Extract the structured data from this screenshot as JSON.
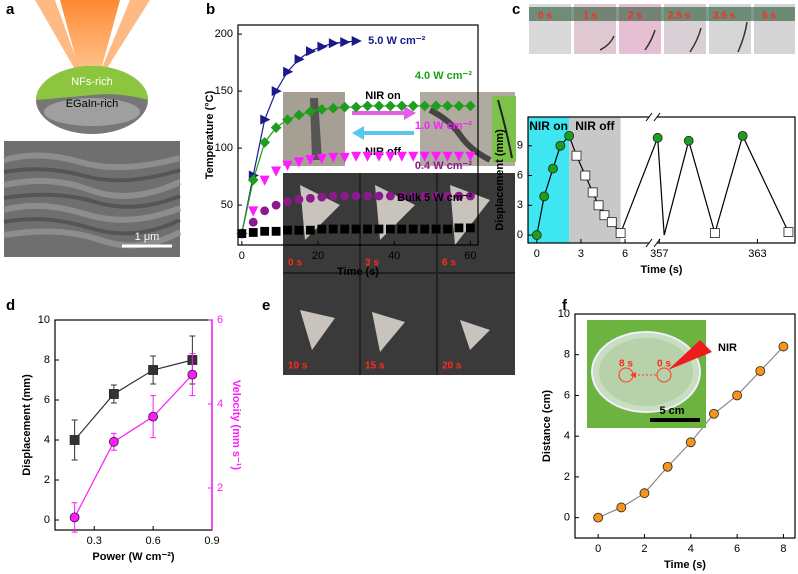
{
  "panel_labels": [
    "a",
    "b",
    "c",
    "d",
    "e",
    "f"
  ],
  "panel_a": {
    "top_layer": "NFs-rich",
    "bottom_layer": "EGaIn-rich",
    "scale_bar": "1 μm"
  },
  "panel_c_photos": [
    "0 s",
    "1 s",
    "2 s",
    "2.5 s",
    "3.5 s",
    "5 s"
  ],
  "panel_e": {
    "forward": "NIR on",
    "backward": "NIR off",
    "photos": [
      "0 s",
      "3 s",
      "6 s",
      "10 s",
      "15 s",
      "20 s"
    ]
  },
  "panel_f_inset": {
    "start": "8 s",
    "end": "0 s",
    "scale_bar": "5 cm",
    "source": "NIR"
  },
  "chart_data": [
    {
      "type": "scatter",
      "xlabel": "Time (s)",
      "ylabel": "Temperature (°C)",
      "x": [
        0,
        3,
        6,
        9,
        12,
        15,
        18,
        21,
        24,
        27,
        30,
        33,
        36,
        39,
        42,
        45,
        48,
        51,
        54,
        57,
        60
      ],
      "xlim": [
        -1,
        62
      ],
      "xticks": [
        0,
        20,
        40,
        60
      ],
      "ylim": [
        15,
        208
      ],
      "yticks": [
        50,
        100,
        150,
        200
      ],
      "series": [
        {
          "name": "5.0 W cm⁻²",
          "color": "#1a1a8c",
          "marker": "triangle-right",
          "line": true,
          "values": [
            25,
            76,
            125,
            150,
            167,
            178,
            185,
            189,
            192,
            193,
            194,
            null,
            null,
            null,
            null,
            null,
            null,
            null,
            null,
            null,
            null
          ]
        },
        {
          "name": "4.0 W cm⁻²",
          "color": "#1e9e1e",
          "marker": "diamond",
          "line": true,
          "values": [
            25,
            72,
            105,
            118,
            125,
            129,
            132,
            134,
            135,
            136,
            136,
            137,
            137,
            137,
            137,
            137,
            137,
            137,
            137,
            137,
            137
          ]
        },
        {
          "name": "1.0 W cm⁻²",
          "color": "#ff1aff",
          "marker": "triangle-down",
          "line": false,
          "values": [
            25,
            45,
            72,
            80,
            85,
            88,
            90,
            91,
            92,
            92,
            93,
            93,
            93,
            93,
            93,
            93,
            93,
            93,
            93,
            93,
            93
          ]
        },
        {
          "name": "0.4 W cm⁻²",
          "color": "#8b1a8b",
          "marker": "circle",
          "line": false,
          "values": [
            25,
            35,
            45,
            50,
            53,
            55,
            56,
            57,
            58,
            58,
            58,
            58,
            58,
            58,
            58,
            58,
            58,
            58,
            58,
            58,
            58
          ]
        },
        {
          "name": "Bulk 5 W cm⁻²",
          "color": "#000000",
          "marker": "square",
          "line": false,
          "values": [
            25,
            26,
            27,
            27,
            28,
            28,
            28,
            29,
            29,
            29,
            29,
            29,
            29,
            29,
            29,
            29,
            29,
            29,
            29,
            30,
            30
          ]
        }
      ]
    },
    {
      "type": "line",
      "xlabel": "Time (s)",
      "ylabel": "Displacement (mm)",
      "x": [
        0,
        0.5,
        1.1,
        1.6,
        2.2,
        2.7,
        3.3,
        3.8,
        4.2,
        4.6,
        5.1,
        5.7,
        356.9,
        357.3,
        358.8,
        360.4,
        362.1,
        364.9
      ],
      "xlim": [
        -0.6,
        365.3
      ],
      "xbreak": [
        7.7,
        356.8
      ],
      "xticks": [
        0,
        3,
        6,
        357,
        363
      ],
      "ylim": [
        -0.8,
        11.9
      ],
      "yticks": [
        0,
        3,
        6,
        9
      ],
      "spans": [
        {
          "label": "NIR on",
          "x": [
            -0.6,
            2.2
          ],
          "color": "#3ee6f2"
        },
        {
          "label": "NIR off",
          "x": [
            2.2,
            5.7
          ],
          "color": "#c8c8c8"
        }
      ],
      "series": [
        {
          "color": "#000000",
          "line": true,
          "marker_colors": {
            "circle": "#1e9e1e",
            "square": "#ffffff"
          },
          "markers": [
            "circle",
            "circle",
            "circle",
            "circle",
            "circle",
            "square",
            "square",
            "square",
            "square",
            "square",
            "square",
            "square",
            "circle",
            null,
            "circle",
            "square",
            "circle",
            "square"
          ],
          "values": [
            0,
            3.9,
            6.7,
            9,
            10,
            8,
            6,
            4.3,
            3,
            2,
            1.3,
            0.2,
            9.8,
            0,
            9.5,
            0.2,
            10,
            0.3
          ]
        }
      ]
    },
    {
      "type": "line",
      "xlabel": "Power (W cm⁻²)",
      "ylabel": "Displacement (mm)",
      "y2label": "Velocity (mm s⁻¹)",
      "x": [
        0.2,
        0.4,
        0.6,
        0.8
      ],
      "xlim": [
        0.1,
        0.9
      ],
      "xticks": [
        0.3,
        0.6,
        0.9
      ],
      "ylim": [
        -0.5,
        10
      ],
      "yticks": [
        0,
        2,
        4,
        6,
        8,
        10
      ],
      "y2lim": [
        1,
        6
      ],
      "y2ticks": [
        2,
        4,
        6
      ],
      "y2color": "#ff1aff",
      "series": [
        {
          "color": "#333333",
          "marker": "square",
          "line": true,
          "values": [
            4.0,
            6.3,
            7.5,
            8.0
          ],
          "errors": [
            1.0,
            0.45,
            0.7,
            1.2
          ]
        },
        {
          "color": "#ff1aff",
          "marker": "circle",
          "line": true,
          "axis": "y2",
          "values": [
            1.3,
            3.1,
            3.7,
            4.7
          ],
          "errors": [
            0.35,
            0.2,
            0.5,
            0.5
          ]
        }
      ]
    },
    {
      "type": "line",
      "xlabel": "Time (s)",
      "ylabel": "Distance (cm)",
      "x": [
        0,
        1,
        2,
        3,
        4,
        5,
        6,
        7,
        8
      ],
      "xlim": [
        -1,
        8.5
      ],
      "xticks": [
        0,
        2,
        4,
        6,
        8
      ],
      "ylim": [
        -1,
        10
      ],
      "yticks": [
        0,
        2,
        4,
        6,
        8,
        10
      ],
      "series": [
        {
          "color": "#f7941d",
          "line_color": "#888888",
          "marker": "circle",
          "line": true,
          "values": [
            0,
            0.5,
            1.2,
            2.5,
            3.7,
            5.1,
            6.0,
            7.2,
            8.4
          ]
        }
      ]
    }
  ]
}
